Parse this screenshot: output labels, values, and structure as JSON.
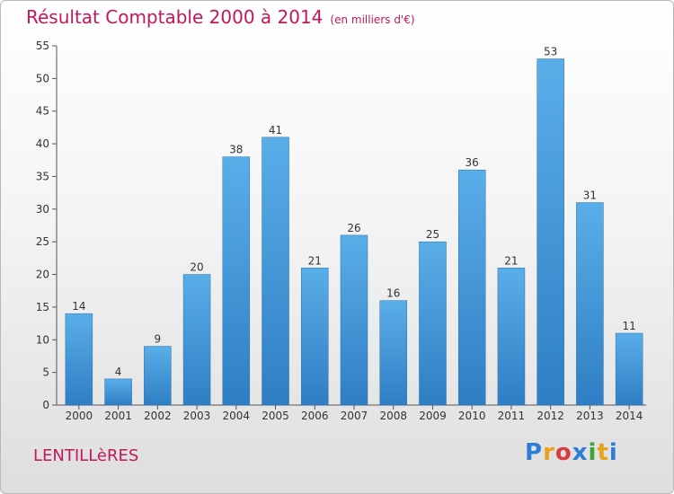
{
  "title": "Résultat Comptable 2000 à 2014",
  "subtitle": "(en milliers d'€)",
  "commune": "LENTILLèRES",
  "logo": {
    "letters": [
      {
        "char": "P",
        "color": "#2e7dd6"
      },
      {
        "char": "r",
        "color": "#e8a21c"
      },
      {
        "char": "o",
        "color": "#d93c3c"
      },
      {
        "char": "x",
        "color": "#2e7dd6"
      },
      {
        "char": "i",
        "color": "#3aa33a"
      },
      {
        "char": "t",
        "color": "#e8a21c"
      },
      {
        "char": "i",
        "color": "#2e7dd6"
      }
    ]
  },
  "colors": {
    "accent": "#c2185b",
    "bar_top": "#5aaee8",
    "bar_bottom": "#2f7ec4"
  },
  "chart_data": {
    "type": "bar",
    "categories": [
      "2000",
      "2001",
      "2002",
      "2003",
      "2004",
      "2005",
      "2006",
      "2007",
      "2008",
      "2009",
      "2010",
      "2011",
      "2012",
      "2013",
      "2014"
    ],
    "values": [
      14,
      4,
      9,
      20,
      38,
      41,
      21,
      26,
      16,
      25,
      36,
      21,
      53,
      31,
      11
    ],
    "ylim": [
      0,
      55
    ],
    "yticks": [
      0,
      5,
      10,
      15,
      20,
      25,
      30,
      35,
      40,
      45,
      50,
      55
    ],
    "grid": false,
    "data_labels": true
  }
}
